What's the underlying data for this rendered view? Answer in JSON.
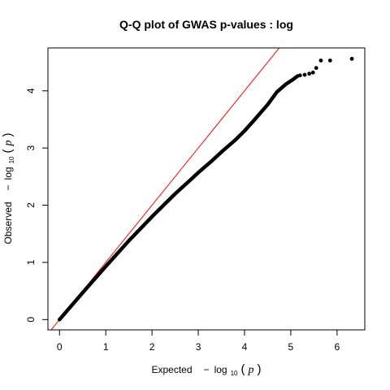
{
  "chart_data": {
    "type": "scatter",
    "title": "Q-Q plot of GWAS p-values : log",
    "xlabel": {
      "prefix": "Expected",
      "minus": "−",
      "log": "log",
      "sub": "10",
      "open_paren": "(",
      "var": "p",
      "close_paren": ")"
    },
    "ylabel": {
      "prefix": "Observed",
      "minus": "−",
      "log": "log",
      "sub": "10",
      "open_paren": "(",
      "var": "p",
      "close_paren": ")"
    },
    "xlim": [
      -0.25,
      6.6
    ],
    "ylim": [
      -0.18,
      4.75
    ],
    "x_ticks": [
      0,
      1,
      2,
      3,
      4,
      5,
      6
    ],
    "y_ticks": [
      0,
      1,
      2,
      3,
      4
    ],
    "x_tick_labels": [
      "0",
      "1",
      "2",
      "3",
      "4",
      "5",
      "6"
    ],
    "y_tick_labels": [
      "0",
      "1",
      "2",
      "3",
      "4"
    ],
    "grid": false,
    "reference_line": {
      "slope": 1,
      "intercept": 0,
      "color": "#ff0000"
    },
    "point_color": "#000000",
    "curve_points": [
      [
        0.0,
        0.0
      ],
      [
        0.5,
        0.47
      ],
      [
        1.0,
        0.93
      ],
      [
        1.5,
        1.38
      ],
      [
        2.0,
        1.8
      ],
      [
        2.5,
        2.2
      ],
      [
        2.8,
        2.42
      ],
      [
        3.0,
        2.57
      ],
      [
        3.3,
        2.78
      ],
      [
        3.5,
        2.93
      ],
      [
        3.8,
        3.14
      ],
      [
        4.0,
        3.3
      ],
      [
        4.2,
        3.48
      ],
      [
        4.5,
        3.76
      ],
      [
        4.7,
        3.98
      ],
      [
        4.9,
        4.12
      ],
      [
        5.05,
        4.2
      ],
      [
        5.15,
        4.26
      ]
    ],
    "tail_points": [
      [
        5.2,
        4.27
      ],
      [
        5.3,
        4.28
      ],
      [
        5.4,
        4.3
      ],
      [
        5.48,
        4.32
      ],
      [
        5.55,
        4.4
      ],
      [
        5.65,
        4.53
      ],
      [
        5.85,
        4.53
      ],
      [
        6.32,
        4.56
      ]
    ]
  }
}
